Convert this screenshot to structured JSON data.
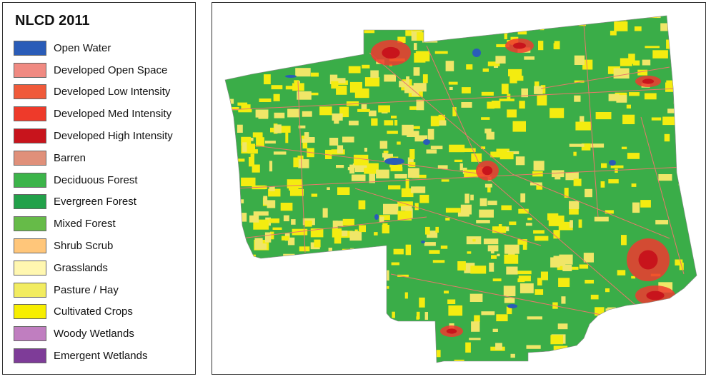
{
  "legend": {
    "title": "NLCD 2011",
    "classes": [
      {
        "label": "Open Water",
        "color": "#2a5cb8"
      },
      {
        "label": "Developed Open Space",
        "color": "#f08a82"
      },
      {
        "label": "Developed Low Intensity",
        "color": "#f05a3a"
      },
      {
        "label": "Developed Med Intensity",
        "color": "#ee3a2a"
      },
      {
        "label": "Developed High Intensity",
        "color": "#c8141c"
      },
      {
        "label": "Barren",
        "color": "#e0907a"
      },
      {
        "label": "Deciduous Forest",
        "color": "#3cb44a"
      },
      {
        "label": "Evergreen Forest",
        "color": "#22a14a"
      },
      {
        "label": "Mixed Forest",
        "color": "#66bb48"
      },
      {
        "label": "Shrub Scrub",
        "color": "#ffc67a"
      },
      {
        "label": "Grasslands",
        "color": "#fff7b0"
      },
      {
        "label": "Pasture / Hay",
        "color": "#f2ec60"
      },
      {
        "label": "Cultivated Crops",
        "color": "#f7ee00"
      },
      {
        "label": "Woody Wetlands",
        "color": "#c07ec0"
      },
      {
        "label": "Emergent Wetlands",
        "color": "#7e3c98"
      }
    ]
  },
  "map": {
    "colors": {
      "forest": "#3aad48",
      "crops": "#f4ec10",
      "pasture": "#f0e668",
      "developed": "#ee3a30",
      "urban": "#c8141c",
      "water": "#2a5cb8",
      "road": "#e8786a"
    }
  }
}
